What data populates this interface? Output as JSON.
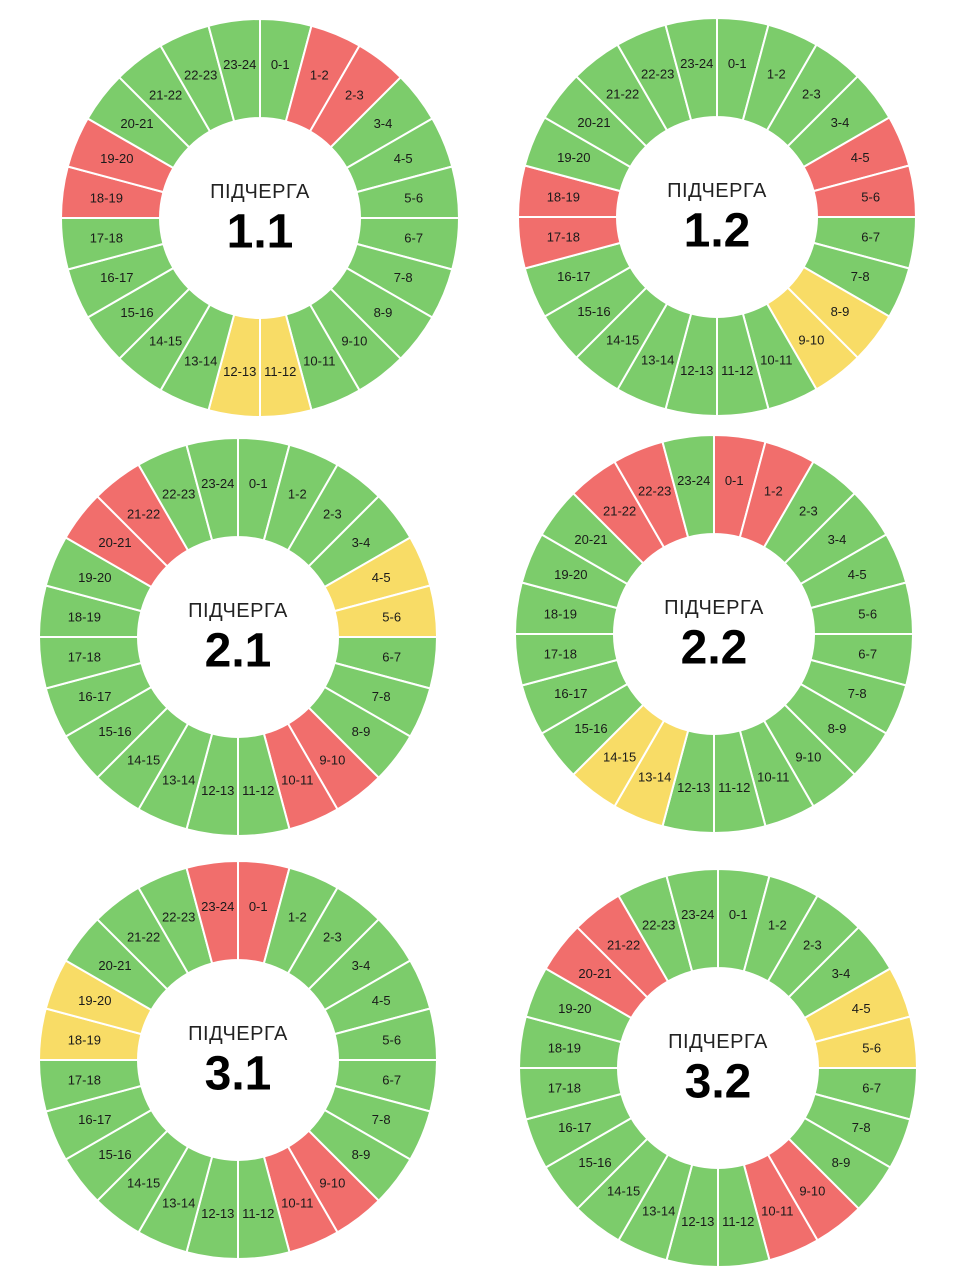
{
  "caption": "ПІДЧЕРГА",
  "status_colors": {
    "on": "#7ccc6b",
    "off": "#f16e6c",
    "maybe": "#f8dc66"
  },
  "hours": [
    "0-1",
    "1-2",
    "2-3",
    "3-4",
    "4-5",
    "5-6",
    "6-7",
    "7-8",
    "8-9",
    "9-10",
    "10-11",
    "11-12",
    "12-13",
    "13-14",
    "14-15",
    "15-16",
    "16-17",
    "17-18",
    "18-19",
    "19-20",
    "20-21",
    "21-22",
    "22-23",
    "23-24"
  ],
  "wheels": [
    {
      "id": "1.1",
      "number": "1.1",
      "status": [
        "on",
        "off",
        "off",
        "on",
        "on",
        "on",
        "on",
        "on",
        "on",
        "on",
        "on",
        "maybe",
        "maybe",
        "on",
        "on",
        "on",
        "on",
        "on",
        "off",
        "off",
        "on",
        "on",
        "on",
        "on"
      ]
    },
    {
      "id": "1.2",
      "number": "1.2",
      "status": [
        "on",
        "on",
        "on",
        "on",
        "off",
        "off",
        "on",
        "on",
        "maybe",
        "maybe",
        "on",
        "on",
        "on",
        "on",
        "on",
        "on",
        "on",
        "off",
        "off",
        "on",
        "on",
        "on",
        "on",
        "on"
      ]
    },
    {
      "id": "2.1",
      "number": "2.1",
      "status": [
        "on",
        "on",
        "on",
        "on",
        "maybe",
        "maybe",
        "on",
        "on",
        "on",
        "off",
        "off",
        "on",
        "on",
        "on",
        "on",
        "on",
        "on",
        "on",
        "on",
        "on",
        "off",
        "off",
        "on",
        "on"
      ]
    },
    {
      "id": "2.2",
      "number": "2.2",
      "status": [
        "off",
        "off",
        "on",
        "on",
        "on",
        "on",
        "on",
        "on",
        "on",
        "on",
        "on",
        "on",
        "on",
        "maybe",
        "maybe",
        "on",
        "on",
        "on",
        "on",
        "on",
        "on",
        "off",
        "off",
        "on"
      ]
    },
    {
      "id": "3.1",
      "number": "3.1",
      "status": [
        "off",
        "on",
        "on",
        "on",
        "on",
        "on",
        "on",
        "on",
        "on",
        "off",
        "off",
        "on",
        "on",
        "on",
        "on",
        "on",
        "on",
        "on",
        "maybe",
        "maybe",
        "on",
        "on",
        "on",
        "off"
      ]
    },
    {
      "id": "3.2",
      "number": "3.2",
      "status": [
        "on",
        "on",
        "on",
        "on",
        "maybe",
        "maybe",
        "on",
        "on",
        "on",
        "off",
        "off",
        "on",
        "on",
        "on",
        "on",
        "on",
        "on",
        "on",
        "on",
        "on",
        "off",
        "off",
        "on",
        "on"
      ]
    }
  ]
}
